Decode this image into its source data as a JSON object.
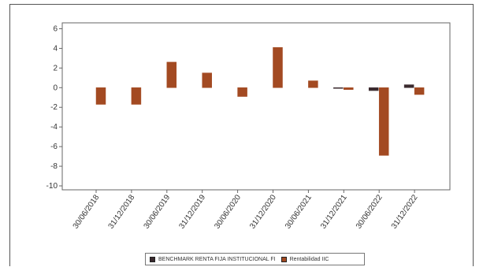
{
  "chart_data": {
    "type": "bar",
    "categories": [
      "30/06/2018",
      "31/12/2018",
      "30/06/2019",
      "31/12/2019",
      "30/06/2020",
      "31/12/2020",
      "30/06/2021",
      "31/12/2021",
      "30/06/2022",
      "31/12/2022"
    ],
    "series": [
      {
        "name": "BENCHMARK RENTA FIJA INSTITUCIONAL FI",
        "color": "#3a2a2e",
        "values": [
          null,
          null,
          null,
          null,
          null,
          null,
          null,
          -0.05,
          -0.3,
          0.3
        ]
      },
      {
        "name": "Rentabilidad IIC",
        "color": "#a34a22",
        "values": [
          -1.7,
          -1.7,
          2.6,
          1.5,
          -0.9,
          4.1,
          0.7,
          -0.2,
          -6.9,
          -0.7
        ]
      }
    ],
    "ylim": [
      -10.4,
      6.6
    ],
    "yticks": [
      6,
      4,
      2,
      0,
      -2,
      -4,
      -6,
      -8,
      -10
    ],
    "legend_position": "bottom"
  }
}
